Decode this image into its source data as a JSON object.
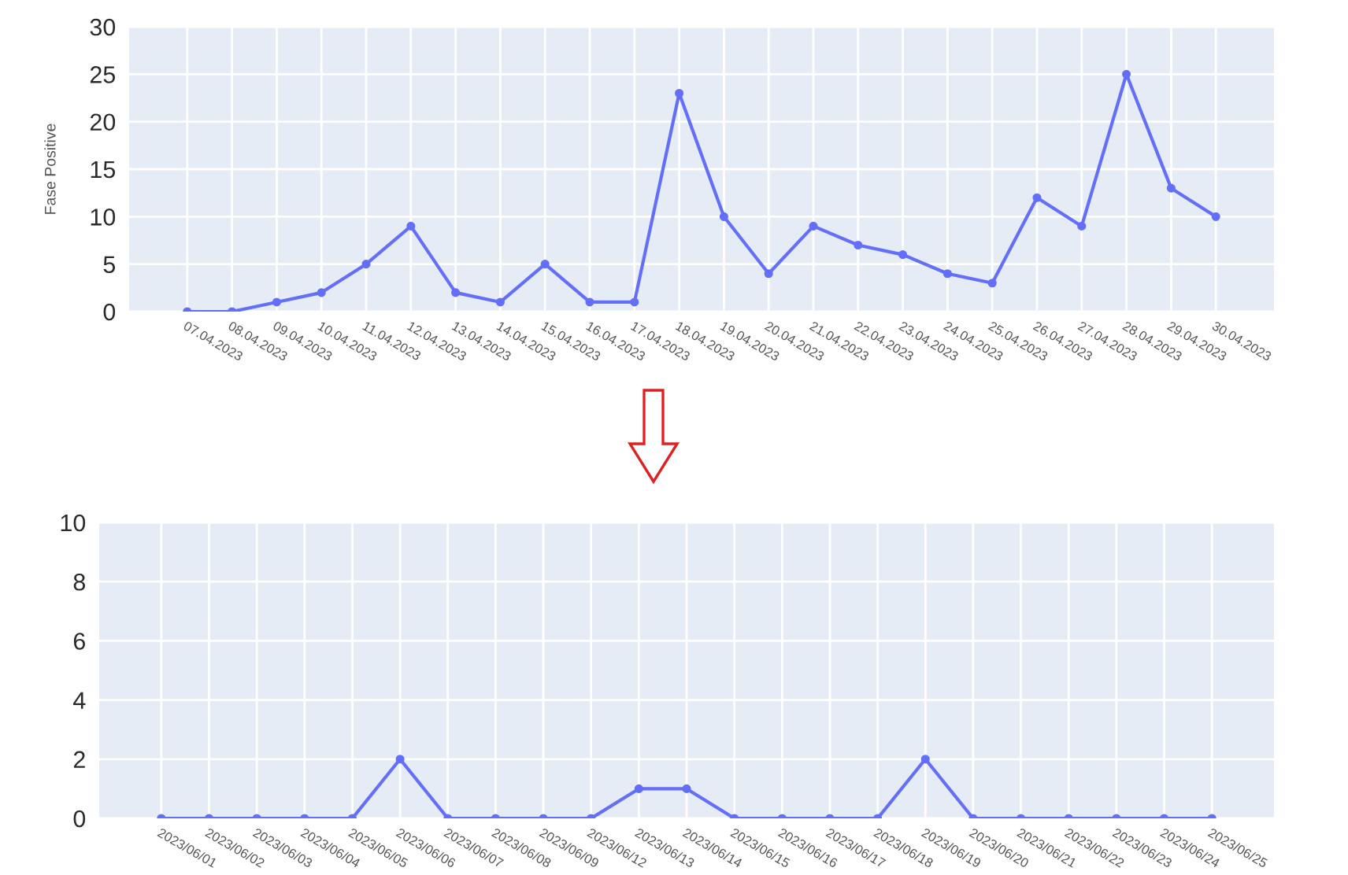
{
  "chart_data": [
    {
      "type": "line",
      "ylabel": "Fase Positive",
      "categories": [
        "07.04.2023",
        "08.04.2023",
        "09.04.2023",
        "10.04.2023",
        "11.04.2023",
        "12.04.2023",
        "13.04.2023",
        "14.04.2023",
        "15.04.2023",
        "16.04.2023",
        "17.04.2023",
        "18.04.2023",
        "19.04.2023",
        "20.04.2023",
        "21.04.2023",
        "22.04.2023",
        "23.04.2023",
        "24.04.2023",
        "25.04.2023",
        "26.04.2023",
        "27.04.2023",
        "28.04.2023",
        "29.04.2023",
        "30.04.2023"
      ],
      "series": [
        {
          "color": "#636efa",
          "values": [
            0,
            0,
            1,
            2,
            5,
            9,
            2,
            1,
            5,
            1,
            1,
            23,
            10,
            4,
            9,
            7,
            6,
            4,
            3,
            12,
            9,
            25,
            13,
            10
          ]
        }
      ],
      "ylim": [
        0,
        30
      ],
      "yticks": [
        0,
        5,
        10,
        15,
        20,
        25,
        30
      ],
      "grid": true,
      "marker": "circle",
      "line_style": "solid"
    },
    {
      "type": "line",
      "categories": [
        "2023/06/01",
        "2023/06/02",
        "2023/06/03",
        "2023/06/04",
        "2023/06/05",
        "2023/06/06",
        "2023/06/07",
        "2023/06/08",
        "2023/06/09",
        "2023/06/12",
        "2023/06/13",
        "2023/06/14",
        "2023/06/15",
        "2023/06/16",
        "2023/06/17",
        "2023/06/18",
        "2023/06/19",
        "2023/06/20",
        "2023/06/21",
        "2023/06/22",
        "2023/06/23",
        "2023/06/24",
        "2023/06/25"
      ],
      "series": [
        {
          "color": "#636efa",
          "values": [
            0,
            0,
            0,
            0,
            0,
            2,
            0,
            0,
            0,
            0,
            1,
            1,
            0,
            0,
            0,
            0,
            2,
            0,
            0,
            0,
            0,
            0,
            0
          ]
        }
      ],
      "ylim": [
        0,
        10
      ],
      "yticks": [
        0,
        2,
        4,
        6,
        8,
        10
      ],
      "grid": true,
      "marker": "circle",
      "line_style": "solid"
    }
  ]
}
